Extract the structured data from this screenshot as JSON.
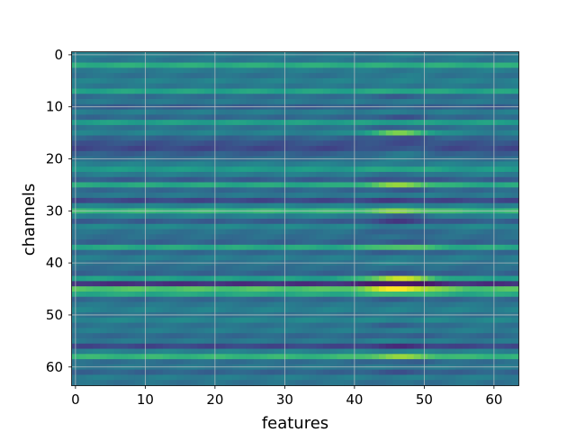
{
  "chart_data": {
    "type": "heatmap",
    "title": "",
    "xlabel": "features",
    "ylabel": "channels",
    "x_range": [
      0,
      63
    ],
    "y_range": [
      0,
      63
    ],
    "y_axis_inverted": true,
    "xticks": [
      0,
      10,
      20,
      30,
      40,
      50,
      60
    ],
    "yticks": [
      0,
      10,
      20,
      30,
      40,
      50,
      60
    ],
    "grid": true,
    "colormap": "viridis",
    "colormap_stops": [
      "#440154",
      "#482878",
      "#3e4989",
      "#31688e",
      "#26828e",
      "#1f9e89",
      "#35b779",
      "#6ece58",
      "#b5de2b",
      "#fde725"
    ],
    "grid_color": "#c8c8c8",
    "rows": 64,
    "cols": 64,
    "row_base_intensity": [
      0.42,
      0.4,
      0.62,
      0.42,
      0.38,
      0.44,
      0.4,
      0.58,
      0.36,
      0.4,
      0.3,
      0.42,
      0.34,
      0.56,
      0.38,
      0.44,
      0.32,
      0.26,
      0.22,
      0.3,
      0.36,
      0.44,
      0.54,
      0.42,
      0.3,
      0.6,
      0.34,
      0.4,
      0.22,
      0.44,
      0.66,
      0.44,
      0.3,
      0.46,
      0.38,
      0.36,
      0.32,
      0.6,
      0.34,
      0.42,
      0.38,
      0.36,
      0.32,
      0.56,
      0.14,
      0.72,
      0.6,
      0.34,
      0.4,
      0.44,
      0.38,
      0.46,
      0.38,
      0.42,
      0.34,
      0.4,
      0.22,
      0.44,
      0.66,
      0.36,
      0.4,
      0.32,
      0.42,
      0.38
    ],
    "row_hotspot_intensity": [
      0.44,
      0.4,
      0.62,
      0.4,
      0.42,
      0.44,
      0.4,
      0.6,
      0.3,
      0.4,
      0.32,
      0.42,
      0.26,
      0.56,
      0.3,
      0.78,
      0.24,
      0.24,
      0.28,
      0.4,
      0.42,
      0.42,
      0.6,
      0.36,
      0.26,
      0.82,
      0.28,
      0.42,
      0.18,
      0.44,
      0.8,
      0.3,
      0.18,
      0.4,
      0.3,
      0.36,
      0.28,
      0.74,
      0.3,
      0.42,
      0.44,
      0.36,
      0.26,
      0.92,
      0.04,
      1.0,
      0.7,
      0.3,
      0.4,
      0.44,
      0.38,
      0.46,
      0.3,
      0.42,
      0.3,
      0.44,
      0.14,
      0.44,
      0.82,
      0.3,
      0.4,
      0.26,
      0.42,
      0.36
    ],
    "hotspot_feature_range": [
      41,
      52
    ]
  }
}
